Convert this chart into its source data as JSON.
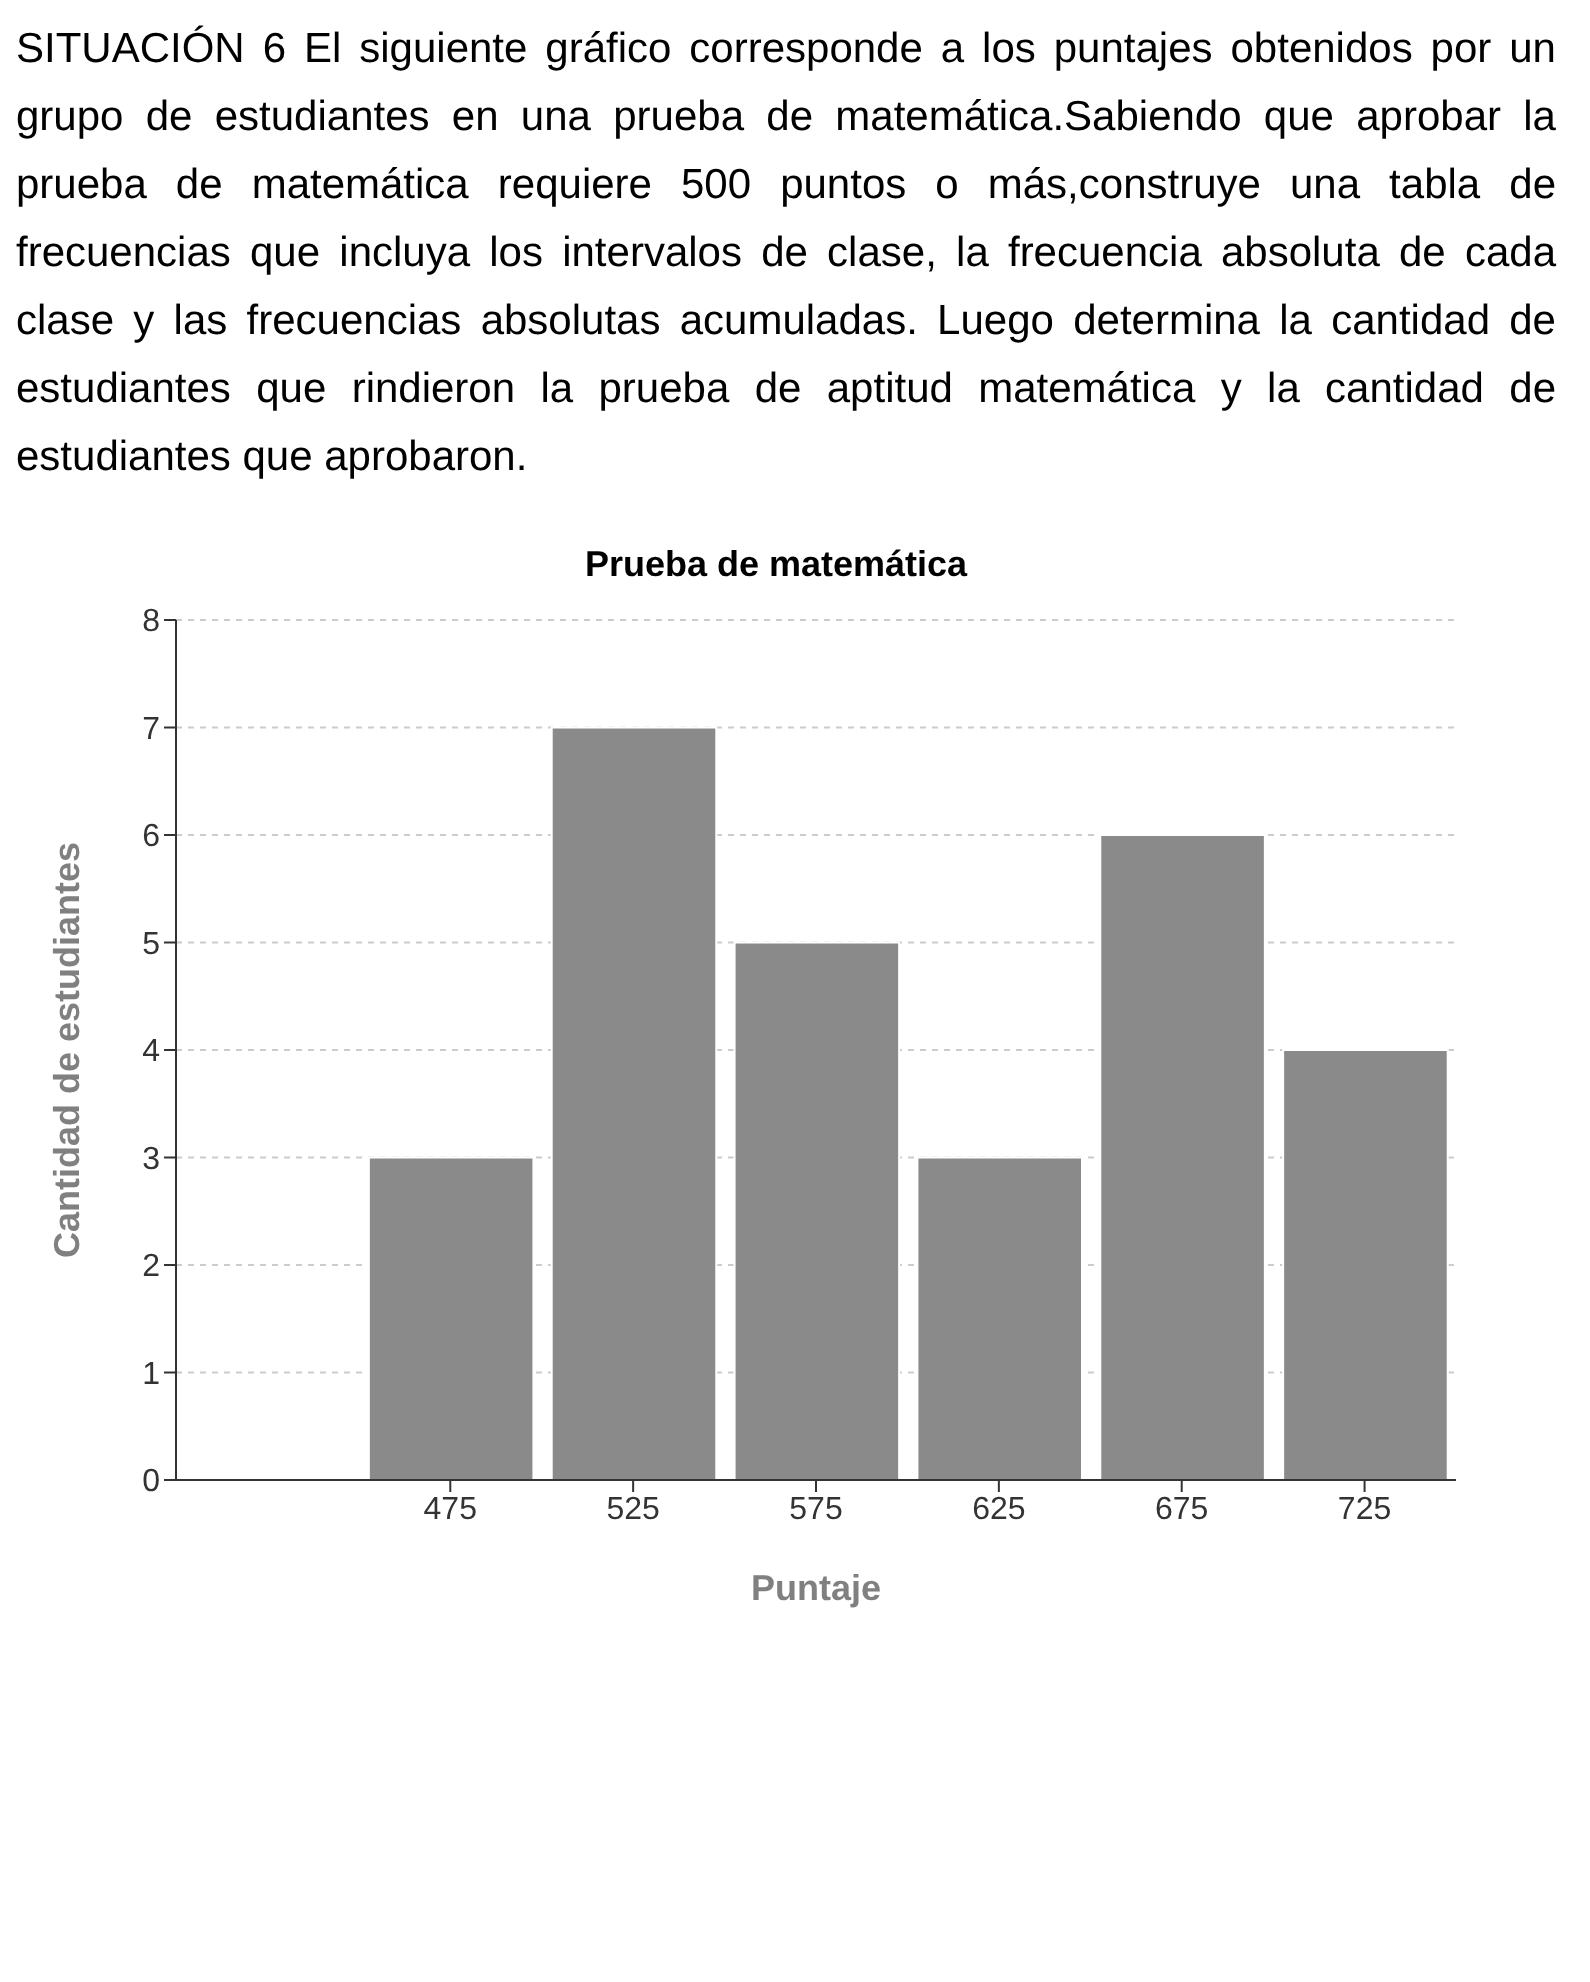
{
  "chart_data": {
    "type": "histogram",
    "title": "Prueba de matemática",
    "xlabel": "Puntaje",
    "ylabel": "Cantidad de estudiantes",
    "annotations": [
      "SITUACIÓN 6  El siguiente gráfico corresponde a los puntajes obtenidos por un grupo de estudiantes en una prueba de matemática.Sabiendo que aprobar la prueba de matemática requiere 500 puntos o más,construye una tabla de frecuencias que incluya los intervalos de clase, la frecuencia absoluta de cada clase y las frecuencias absolutas acumuladas. Luego determina la cantidad de estudiantes que rindieron la prueba de aptitud matemática y la cantidad de estudiantes que aprobaron."
    ],
    "bins": [
      450,
      500,
      550,
      600,
      650,
      700,
      750
    ],
    "values": [
      3,
      7,
      5,
      3,
      6,
      4
    ],
    "color": "#8a8a8a",
    "xlim": [
      400,
      750
    ],
    "xticks": [
      475,
      525,
      575,
      625,
      675,
      725
    ],
    "ylim": [
      0,
      8
    ],
    "yticks": [
      0,
      1,
      2,
      3,
      4,
      5,
      6,
      7,
      8
    ],
    "grid": "y"
  }
}
